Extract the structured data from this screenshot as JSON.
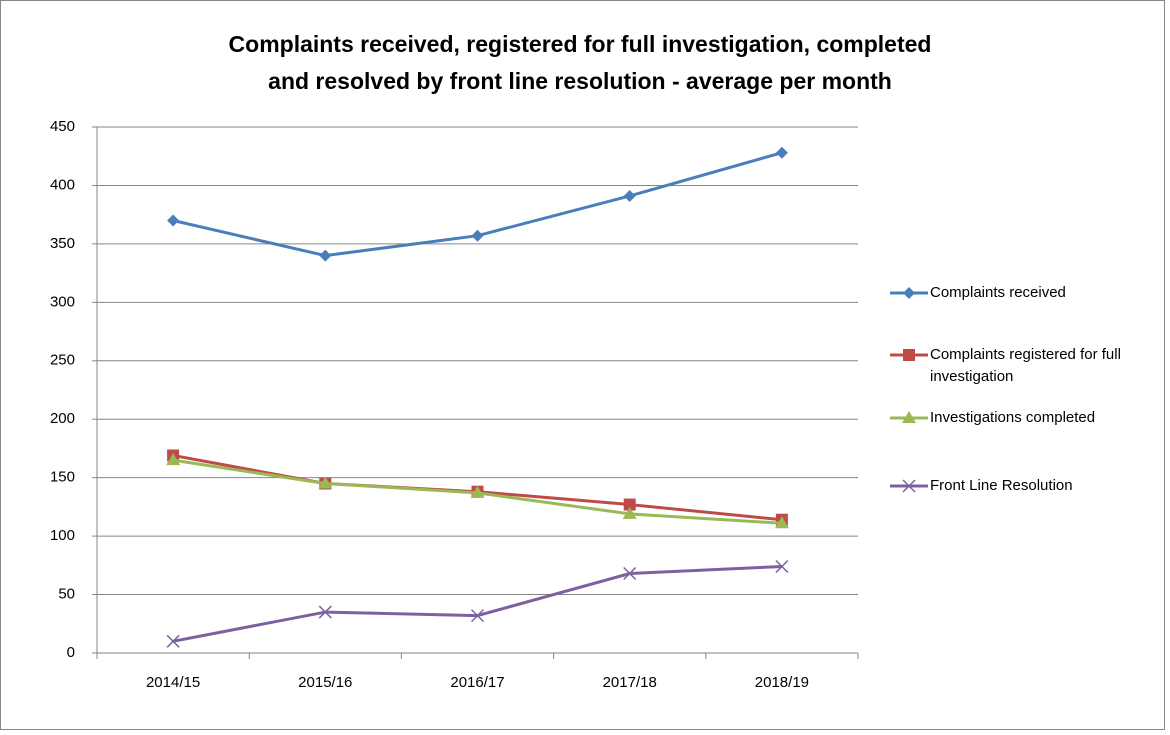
{
  "chart_data": {
    "type": "line",
    "title": [
      "Complaints received, registered for full investigation, completed",
      "and resolved by front line resolution - average per month"
    ],
    "categories": [
      "2014/15",
      "2015/16",
      "2016/17",
      "2017/18",
      "2018/19"
    ],
    "series": [
      {
        "name": "Complaints received",
        "color": "#4a7ebb",
        "marker": "diamond",
        "values": [
          370,
          340,
          357,
          391,
          428
        ]
      },
      {
        "name": "Complaints registered for full investigation",
        "color": "#be4b48",
        "marker": "square",
        "values": [
          169,
          145,
          138,
          127,
          114
        ]
      },
      {
        "name": "Investigations completed",
        "color": "#98b954",
        "marker": "triangle",
        "values": [
          165,
          145,
          137,
          119,
          111
        ]
      },
      {
        "name": "Front Line Resolution",
        "color": "#7d60a0",
        "marker": "x",
        "values": [
          10,
          35,
          32,
          68,
          74
        ]
      }
    ],
    "ylim": [
      0,
      450
    ],
    "yticks": [
      0,
      50,
      100,
      150,
      200,
      250,
      300,
      350,
      400,
      450
    ],
    "grid": true,
    "legend": "right"
  }
}
